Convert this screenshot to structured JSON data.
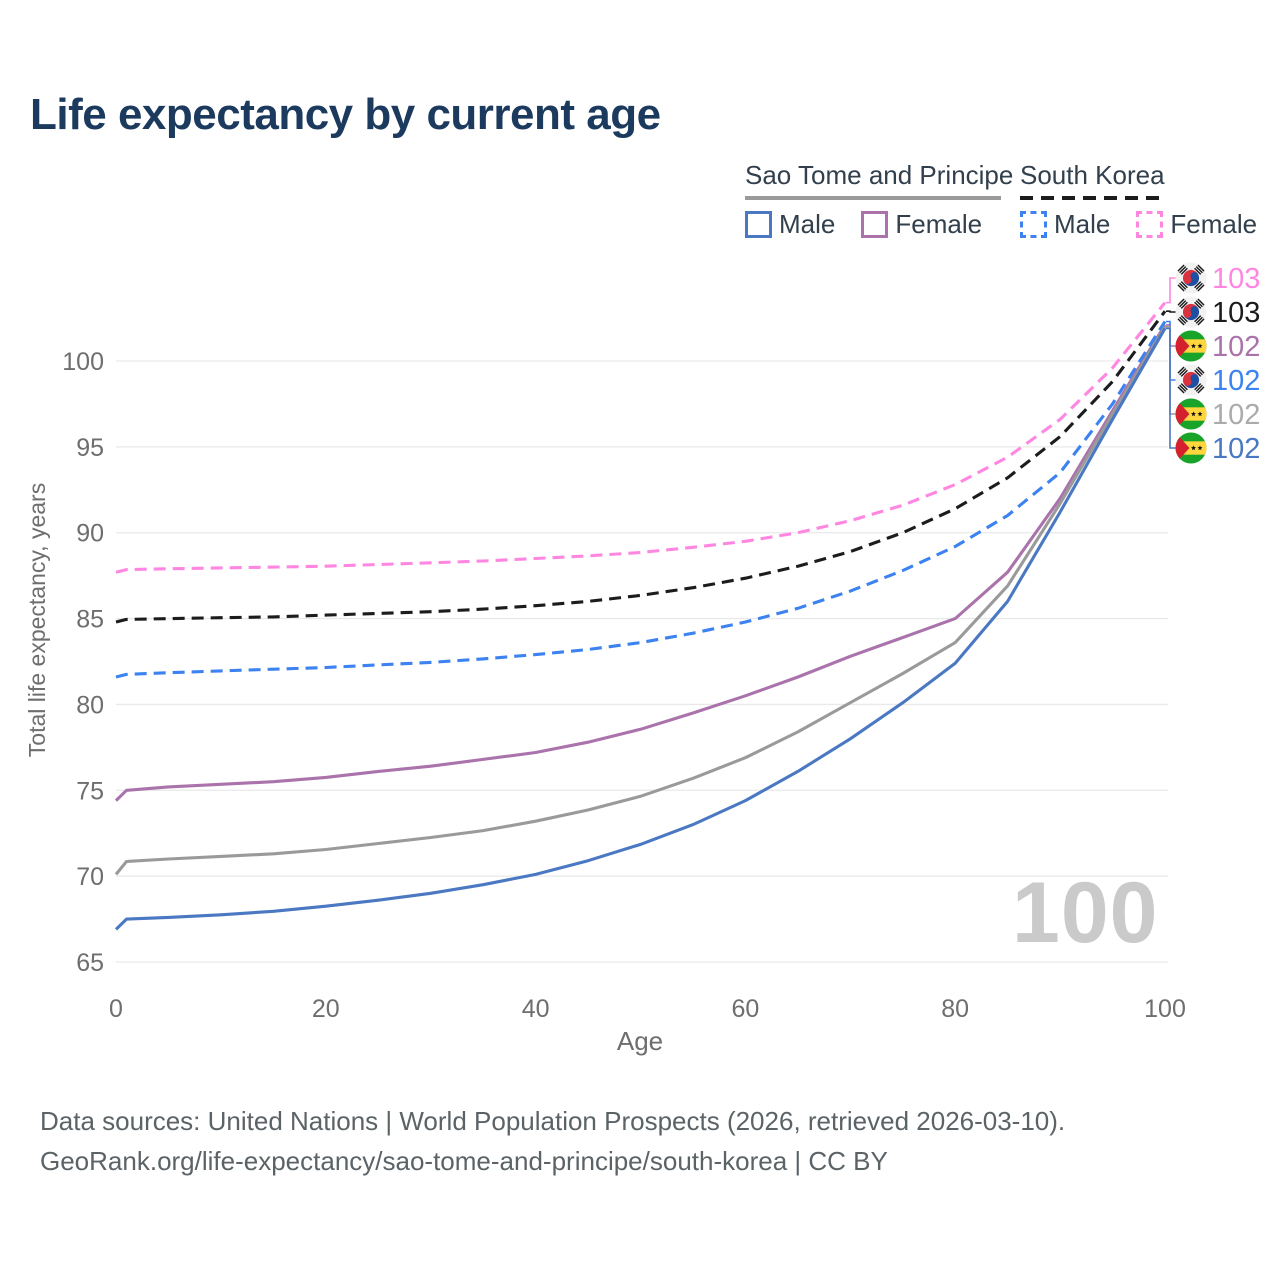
{
  "title": "Life expectancy by current age",
  "watermark": "100",
  "legend": {
    "groups": [
      {
        "label": "Sao Tome and Principe",
        "line_style": "solid",
        "line_color": "#9a9a9a",
        "items": [
          {
            "label": "Male",
            "color": "#4a78c2",
            "dashed": false
          },
          {
            "label": "Female",
            "color": "#aa73ab",
            "dashed": false
          }
        ]
      },
      {
        "label": "South Korea",
        "line_style": "dashed",
        "line_color": "#1c1c1c",
        "items": [
          {
            "label": "Male",
            "color": "#3c82f0",
            "dashed": true
          },
          {
            "label": "Female",
            "color": "#ff87e1",
            "dashed": true
          }
        ]
      }
    ]
  },
  "chart_data": {
    "type": "line",
    "title": "Life expectancy by current age",
    "xlabel": "Age",
    "ylabel": "Total life expectancy, years",
    "xlim": [
      0,
      100
    ],
    "ylim": [
      65,
      103.5
    ],
    "x_ticks": [
      0,
      20,
      40,
      60,
      80,
      100
    ],
    "y_ticks": [
      65,
      70,
      75,
      80,
      85,
      90,
      95,
      100
    ],
    "grid": true,
    "legend_position": "top-right",
    "x": [
      0,
      1,
      5,
      10,
      15,
      20,
      25,
      30,
      35,
      40,
      45,
      50,
      55,
      60,
      65,
      70,
      75,
      80,
      85,
      90,
      95,
      100
    ],
    "series": [
      {
        "name": "South Korea — Female",
        "country": "South Korea",
        "sex": "Female",
        "color": "#ff87e1",
        "dashed": true,
        "flag": "south-korea",
        "end_label": "103",
        "end_label_color": "#ff87e1",
        "label_row": 0,
        "values": [
          87.7,
          87.85,
          87.9,
          87.95,
          88.0,
          88.05,
          88.15,
          88.25,
          88.35,
          88.5,
          88.65,
          88.85,
          89.15,
          89.5,
          90.0,
          90.7,
          91.6,
          92.8,
          94.4,
          96.6,
          99.6,
          103.4
        ]
      },
      {
        "name": "South Korea — Total",
        "country": "South Korea",
        "sex": "All",
        "color": "#1c1c1c",
        "dashed": true,
        "flag": "south-korea",
        "end_label": "103",
        "end_label_color": "#1c1c1c",
        "label_row": 1,
        "values": [
          84.8,
          84.95,
          85.0,
          85.05,
          85.1,
          85.2,
          85.3,
          85.4,
          85.55,
          85.75,
          86.0,
          86.35,
          86.8,
          87.35,
          88.05,
          88.9,
          90.0,
          91.4,
          93.2,
          95.6,
          98.8,
          102.9
        ]
      },
      {
        "name": "Sao Tome and Principe — Female",
        "country": "Sao Tome and Principe",
        "sex": "Female",
        "color": "#aa73ab",
        "dashed": false,
        "flag": "sao-tome-and-principe",
        "end_label": "102",
        "end_label_color": "#aa73ab",
        "label_row": 2,
        "values": [
          74.4,
          75.0,
          75.2,
          75.35,
          75.5,
          75.75,
          76.1,
          76.4,
          76.8,
          77.2,
          77.8,
          78.55,
          79.5,
          80.5,
          81.6,
          82.8,
          83.9,
          85.0,
          87.7,
          92.0,
          97.1,
          102.1
        ]
      },
      {
        "name": "South Korea — Male",
        "country": "South Korea",
        "sex": "Male",
        "color": "#3c82f0",
        "dashed": true,
        "flag": "south-korea",
        "end_label": "102",
        "end_label_color": "#3c82f0",
        "label_row": 3,
        "values": [
          81.6,
          81.75,
          81.85,
          81.95,
          82.05,
          82.15,
          82.3,
          82.45,
          82.65,
          82.9,
          83.2,
          83.6,
          84.15,
          84.8,
          85.6,
          86.6,
          87.8,
          89.2,
          91.0,
          93.5,
          97.5,
          102.3
        ]
      },
      {
        "name": "Sao Tome and Principe — Total",
        "country": "Sao Tome and Principe",
        "sex": "All",
        "color": "#9a9a9a",
        "dashed": false,
        "flag": "sao-tome-and-principe",
        "end_label": "102",
        "end_label_color": "#ababab",
        "label_row": 4,
        "values": [
          70.1,
          70.85,
          71.0,
          71.15,
          71.3,
          71.55,
          71.9,
          72.25,
          72.65,
          73.2,
          73.85,
          74.65,
          75.7,
          76.9,
          78.4,
          80.1,
          81.8,
          83.6,
          86.9,
          91.7,
          96.9,
          102.0
        ]
      },
      {
        "name": "Sao Tome and Principe — Male",
        "country": "Sao Tome and Principe",
        "sex": "Male",
        "color": "#4a78c2",
        "dashed": false,
        "flag": "sao-tome-and-principe",
        "end_label": "102",
        "end_label_color": "#4a78c2",
        "label_row": 5,
        "values": [
          66.9,
          67.5,
          67.6,
          67.75,
          67.95,
          68.25,
          68.6,
          69.0,
          69.5,
          70.1,
          70.9,
          71.85,
          73.0,
          74.4,
          76.1,
          78.0,
          80.1,
          82.4,
          86.0,
          91.2,
          96.6,
          101.9
        ]
      }
    ]
  },
  "footer": {
    "line1": "Data sources: United Nations | World Population Prospects (2026, retrieved 2026-03-10).",
    "line2": "GeoRank.org/life-expectancy/sao-tome-and-principe/south-korea | CC BY"
  }
}
